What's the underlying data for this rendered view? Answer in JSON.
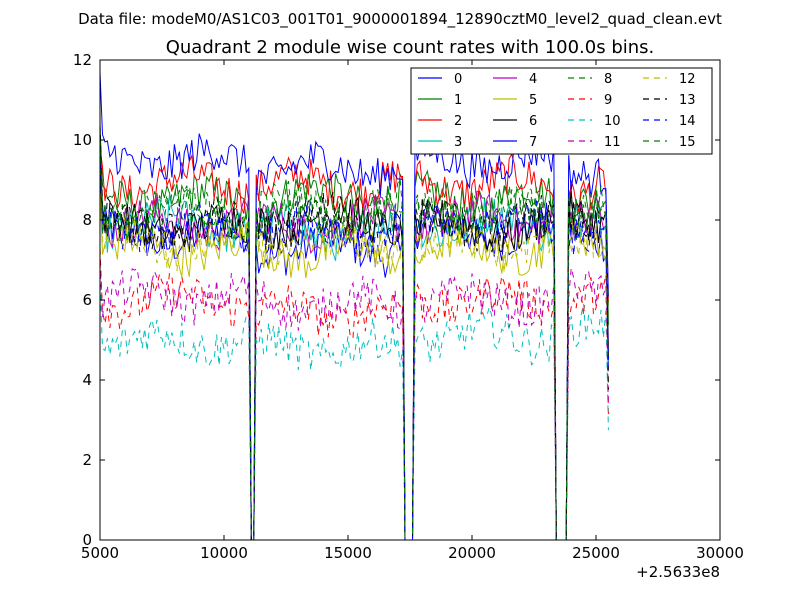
{
  "chart_data": {
    "type": "line",
    "suptitle": "Data file: modeM0/AS1C03_001T01_9000001894_12890cztM0_level2_quad_clean.evt",
    "title": "Quadrant 2 module wise count rates with 100.0s bins.",
    "xlabel": "",
    "ylabel": "",
    "xlim": [
      5000,
      30000
    ],
    "ylim": [
      0,
      12
    ],
    "xticks": [
      "5000",
      "10000",
      "15000",
      "20000",
      "25000",
      "30000"
    ],
    "yticks": [
      "0",
      "2",
      "4",
      "6",
      "8",
      "10",
      "12"
    ],
    "x_offset_label": "+2.5633e8",
    "grid": false,
    "legend_position": "upper-right",
    "legend_columns": 4,
    "bin_size_s": 100,
    "gaps": [
      [
        11000,
        11300
      ],
      [
        17200,
        17700
      ],
      [
        23300,
        23900
      ]
    ],
    "x_end": 25500,
    "series": [
      {
        "name": "0",
        "color": "#0000ff",
        "style": "solid",
        "mean": 7.6,
        "segment_offsets": [
          0.0,
          -0.3,
          0.1,
          0.1
        ]
      },
      {
        "name": "1",
        "color": "#008000",
        "style": "solid",
        "mean": 8.5,
        "segment_offsets": [
          0.0,
          0.1,
          0.0,
          0.2
        ]
      },
      {
        "name": "2",
        "color": "#ff0000",
        "style": "solid",
        "mean": 8.8,
        "segment_offsets": [
          0.1,
          0.1,
          0.1,
          0.0
        ]
      },
      {
        "name": "3",
        "color": "#00bfbf",
        "style": "solid",
        "mean": 7.9,
        "segment_offsets": [
          0.0,
          -0.2,
          0.0,
          0.1
        ]
      },
      {
        "name": "4",
        "color": "#bf00bf",
        "style": "solid",
        "mean": 7.9,
        "segment_offsets": [
          0.0,
          0.0,
          0.1,
          0.0
        ]
      },
      {
        "name": "5",
        "color": "#bfbf00",
        "style": "solid",
        "mean": 7.3,
        "segment_offsets": [
          0.0,
          -0.1,
          0.0,
          0.1
        ]
      },
      {
        "name": "6",
        "color": "#000000",
        "style": "solid",
        "mean": 7.8,
        "segment_offsets": [
          0.0,
          0.2,
          0.0,
          0.3
        ]
      },
      {
        "name": "7",
        "color": "#0000ff",
        "style": "solid",
        "mean": 9.3,
        "segment_offsets": [
          0.2,
          0.0,
          0.2,
          0.0
        ]
      },
      {
        "name": "8",
        "color": "#008000",
        "style": "dashed",
        "mean": 8.1,
        "segment_offsets": [
          0.0,
          0.0,
          0.1,
          0.1
        ]
      },
      {
        "name": "9",
        "color": "#ff0000",
        "style": "dashed",
        "mean": 6.0,
        "segment_offsets": [
          0.0,
          -0.3,
          0.0,
          0.0
        ]
      },
      {
        "name": "10",
        "color": "#00bfbf",
        "style": "dashed",
        "mean": 5.1,
        "segment_offsets": [
          -0.1,
          -0.3,
          0.0,
          0.1
        ]
      },
      {
        "name": "11",
        "color": "#bf00bf",
        "style": "dashed",
        "mean": 6.0,
        "segment_offsets": [
          0.1,
          -0.1,
          0.0,
          0.1
        ]
      },
      {
        "name": "12",
        "color": "#bfbf00",
        "style": "dashed",
        "mean": 7.4,
        "segment_offsets": [
          0.0,
          0.0,
          0.0,
          0.0
        ]
      },
      {
        "name": "13",
        "color": "#000000",
        "style": "dashed",
        "mean": 7.9,
        "segment_offsets": [
          0.0,
          0.1,
          0.0,
          0.2
        ]
      },
      {
        "name": "14",
        "color": "#0000ff",
        "style": "dashed",
        "mean": 7.8,
        "segment_offsets": [
          0.0,
          0.0,
          0.1,
          0.0
        ]
      },
      {
        "name": "15",
        "color": "#008000",
        "style": "dashed",
        "mean": 8.2,
        "segment_offsets": [
          0.0,
          0.1,
          0.0,
          0.1
        ]
      }
    ]
  }
}
